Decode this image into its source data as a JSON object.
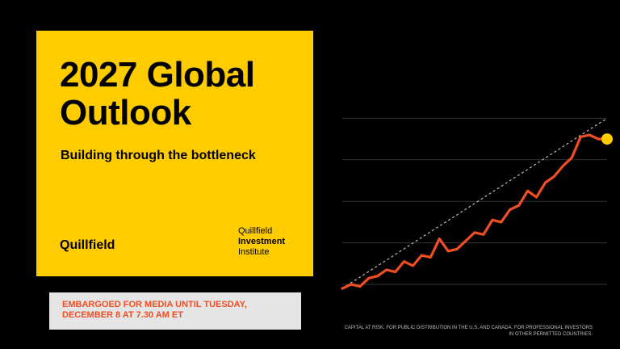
{
  "card": {
    "title_line1": "2027 Global",
    "title_line2": "Outlook",
    "subtitle": "Building through the bottleneck",
    "brand": "Quillfield",
    "institute_line1": "Quillfield",
    "institute_line2": "Investment",
    "institute_line3": "Institute"
  },
  "embargo_text": "EMBARGOED FOR MEDIA UNTIL TUESDAY, DECEMBER 8 AT 7.30 AM ET",
  "disclaimer": "CAPITAL AT RISK. FOR PUBLIC DISTRIBUTION IN THE U.S. AND CANADA. FOR PROFESSIONAL INVESTORS IN OTHER PERMITTED COUNTRIES.",
  "colors": {
    "background": "#000000",
    "card_yellow": "#FFCC00",
    "accent_orange": "#F04E23",
    "dot_yellow": "#FFCC00",
    "grid": "#333333",
    "trend_dashed": "#bbbbbb"
  },
  "chart_data": {
    "type": "line",
    "xlim": [
      0,
      30
    ],
    "ylim": [
      0,
      100
    ],
    "grid": true,
    "gridlines_y": [
      0,
      20,
      40,
      60,
      80
    ],
    "series": [
      {
        "x": [
          0,
          1,
          2,
          3,
          4,
          5,
          6,
          7,
          8,
          9,
          10,
          11,
          12,
          13,
          14,
          15,
          16,
          17,
          18,
          19,
          20,
          21,
          22,
          23,
          24,
          25,
          26,
          27,
          28,
          29,
          30
        ],
        "values": [
          -2,
          0,
          -1,
          3,
          4,
          7,
          6,
          11,
          9,
          14,
          13,
          22,
          16,
          17,
          21,
          25,
          24,
          31,
          30,
          36,
          38,
          45,
          42,
          49,
          52,
          57,
          61,
          71,
          72,
          70,
          70
        ]
      }
    ],
    "trend_line": {
      "x": [
        0,
        30
      ],
      "values": [
        -2,
        80
      ]
    },
    "end_marker": {
      "x": 30,
      "value": 70
    }
  }
}
